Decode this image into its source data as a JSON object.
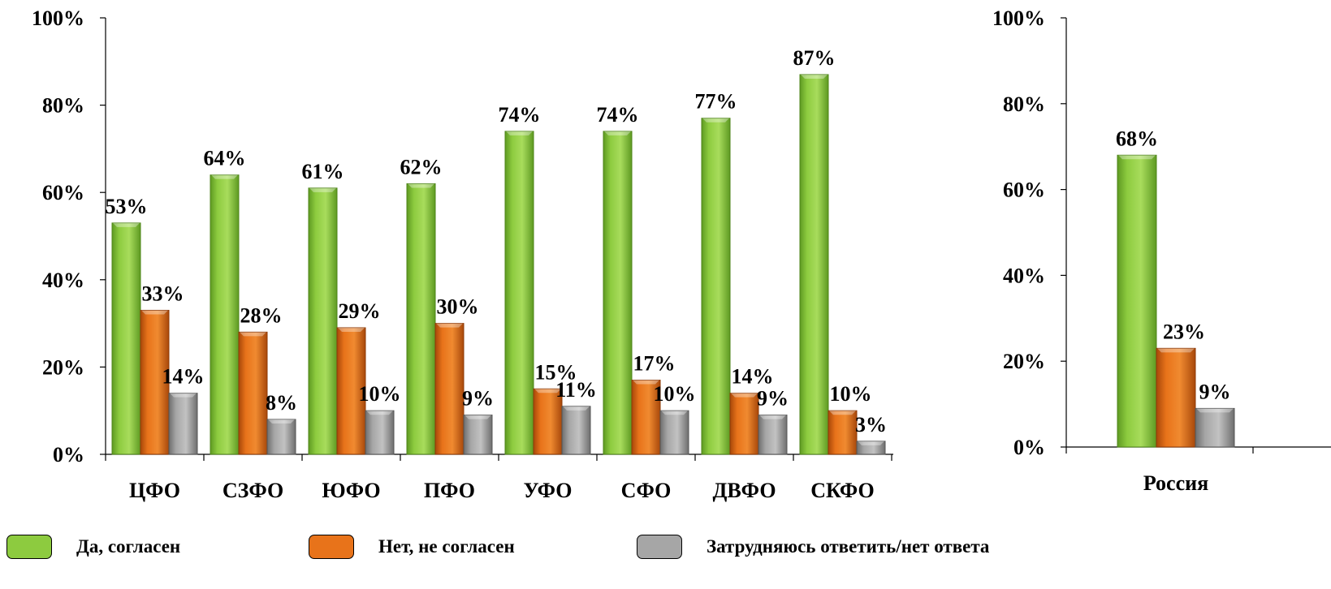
{
  "colors": {
    "yes": "#8DCB3F",
    "no": "#E8731A",
    "unsure": "#A6A6A6"
  },
  "legend": [
    {
      "key": "yes",
      "label": "Да, согласен"
    },
    {
      "key": "no",
      "label": "Нет, не согласен"
    },
    {
      "key": "unsure",
      "label": "Затрудняюсь ответить/нет ответа"
    }
  ],
  "chart_data": [
    {
      "type": "bar",
      "categories": [
        "ЦФО",
        "СЗФО",
        "ЮФО",
        "ПФО",
        "УФО",
        "СФО",
        "ДВФО",
        "СКФО"
      ],
      "series": [
        {
          "name": "Да, согласен",
          "key": "yes",
          "values": [
            53,
            64,
            61,
            62,
            74,
            74,
            77,
            87
          ]
        },
        {
          "name": "Нет, не согласен",
          "key": "no",
          "values": [
            33,
            28,
            29,
            30,
            15,
            17,
            14,
            10
          ]
        },
        {
          "name": "Затрудняюсь ответить/нет ответа",
          "key": "unsure",
          "values": [
            14,
            8,
            10,
            9,
            11,
            10,
            9,
            3
          ]
        }
      ],
      "ylim": [
        0,
        100
      ],
      "yticks": [
        "0%",
        "20%",
        "40%",
        "60%",
        "80%",
        "100%"
      ],
      "value_suffix": "%",
      "grid": false,
      "legend_position": "bottom"
    },
    {
      "type": "bar",
      "categories": [
        "Россия"
      ],
      "series": [
        {
          "name": "Да, согласен",
          "key": "yes",
          "values": [
            68
          ]
        },
        {
          "name": "Нет, не согласен",
          "key": "no",
          "values": [
            23
          ]
        },
        {
          "name": "Затрудняюсь ответить/нет ответа",
          "key": "unsure",
          "values": [
            9
          ]
        }
      ],
      "ylim": [
        0,
        100
      ],
      "yticks": [
        "0%",
        "20%",
        "40%",
        "60%",
        "80%",
        "100%"
      ],
      "value_suffix": "%",
      "grid": false,
      "legend_position": "bottom"
    }
  ]
}
